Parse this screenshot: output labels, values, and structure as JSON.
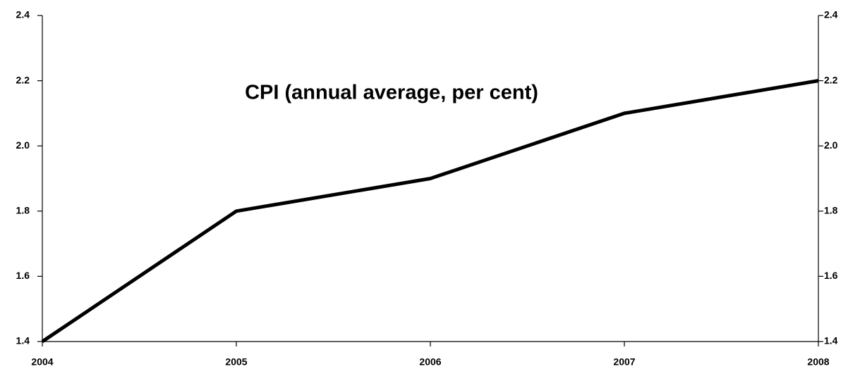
{
  "chart_data": {
    "type": "line",
    "title": "CPI (annual average, per cent)",
    "x": [
      2004,
      2005,
      2006,
      2007,
      2008
    ],
    "xlim": [
      2004,
      2008
    ],
    "xticks": [
      2004,
      2005,
      2006,
      2007,
      2008
    ],
    "series": [
      {
        "color": "#000000",
        "values": [
          1.4,
          1.8,
          1.9,
          2.1,
          2.2
        ]
      }
    ],
    "ylim": [
      1.4,
      2.4
    ],
    "yticks": [
      1.4,
      1.6,
      1.8,
      {
        "value": 2,
        "label": "2.0"
      },
      2.2,
      2.4
    ],
    "y2lim": [
      1.4,
      2.4
    ],
    "y2ticks": [
      1.4,
      1.6,
      1.8,
      {
        "value": 2,
        "label": "2.0"
      },
      2.2,
      2.4
    ],
    "grid": false
  }
}
